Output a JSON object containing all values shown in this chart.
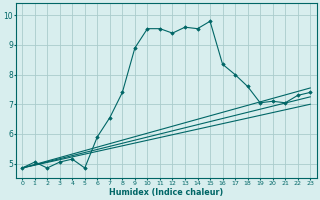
{
  "title": "",
  "xlabel": "Humidex (Indice chaleur)",
  "ylabel": "",
  "bg_color": "#d8eeee",
  "line_color": "#006666",
  "grid_color": "#aacccc",
  "xlim": [
    -0.5,
    23.5
  ],
  "ylim": [
    4.5,
    10.4
  ],
  "xticks": [
    0,
    1,
    2,
    3,
    4,
    5,
    6,
    7,
    8,
    9,
    10,
    11,
    12,
    13,
    14,
    15,
    16,
    17,
    18,
    19,
    20,
    21,
    22,
    23
  ],
  "yticks": [
    5,
    6,
    7,
    8,
    9,
    10
  ],
  "curve1_x": [
    0,
    1,
    2,
    3,
    4,
    5,
    6,
    7,
    8,
    9,
    10,
    11,
    12,
    13,
    14,
    15,
    16,
    17,
    18,
    19,
    20,
    21,
    22,
    23
  ],
  "curve1_y": [
    4.85,
    5.05,
    4.85,
    5.05,
    5.15,
    4.85,
    5.9,
    6.55,
    7.4,
    8.9,
    9.55,
    9.55,
    9.4,
    9.6,
    9.55,
    9.8,
    8.35,
    8.0,
    7.6,
    7.05,
    7.1,
    7.05,
    7.3,
    7.4
  ],
  "line1_x": [
    0,
    23
  ],
  "line1_y": [
    4.85,
    7.55
  ],
  "line2_x": [
    0,
    23
  ],
  "line2_y": [
    4.85,
    7.25
  ],
  "line3_x": [
    0,
    23
  ],
  "line3_y": [
    4.85,
    7.0
  ]
}
